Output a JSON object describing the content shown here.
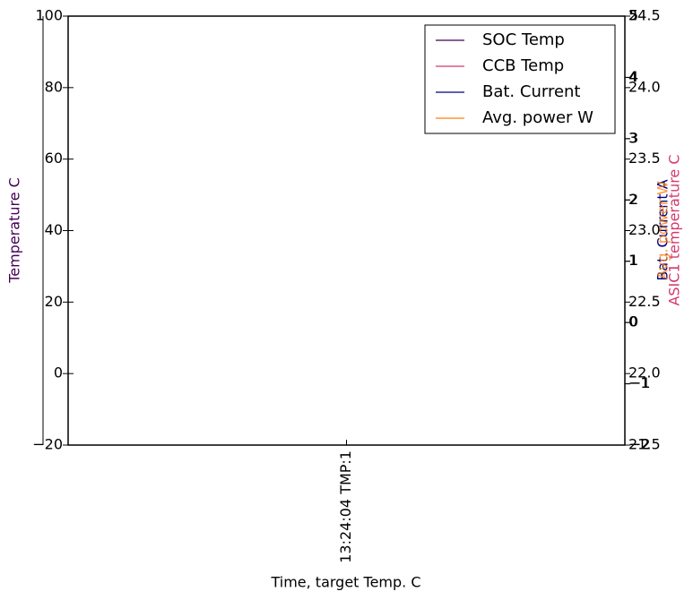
{
  "chart_data": {
    "type": "line",
    "xlabel": "Time, target Temp. C",
    "ylabel": "Temperature C",
    "y2label": "ASIC1 temperature C",
    "y3label": "Bat. Current A",
    "y4label": "Avg. power W",
    "categories": [
      "13:24:04 TMP:1"
    ],
    "series": [
      {
        "name": "SOC Temp",
        "color": "#440154",
        "values": [
          null
        ]
      },
      {
        "name": "CCB Temp",
        "color": "#d33a6a",
        "values": [
          null
        ],
        "axis": "y2"
      },
      {
        "name": "Bat. Current",
        "color": "#00007f",
        "values": [
          null
        ],
        "axis": "y3"
      },
      {
        "name": "Avg. power W",
        "color": "#ff7f0e",
        "values": [
          null
        ],
        "axis": "y4"
      }
    ],
    "ylim": [
      -20,
      100
    ],
    "yticks": [
      {
        "value": -20,
        "label": "−20"
      },
      0,
      20,
      40,
      60,
      80,
      100
    ],
    "y2lim": [
      21.5,
      24.5
    ],
    "y2ticks": [
      21.5,
      {
        "value": 22,
        "label": "22.0"
      },
      22.5,
      {
        "value": 23,
        "label": "23.0"
      },
      23.5,
      {
        "value": 24,
        "label": "24.0"
      },
      24.5
    ],
    "y3lim": [
      -2,
      5
    ],
    "y3ticks": [
      {
        "value": -2,
        "label": "−2"
      },
      {
        "value": -1,
        "label": "−1"
      },
      0,
      1,
      2,
      3,
      4,
      5
    ],
    "y4lim": [
      -2,
      5
    ],
    "y4ticks": [
      {
        "value": -2,
        "label": "−2"
      },
      {
        "value": -1,
        "label": "−1"
      },
      0,
      1,
      2,
      3,
      4,
      5
    ],
    "grid": false,
    "legend": "upper right"
  }
}
